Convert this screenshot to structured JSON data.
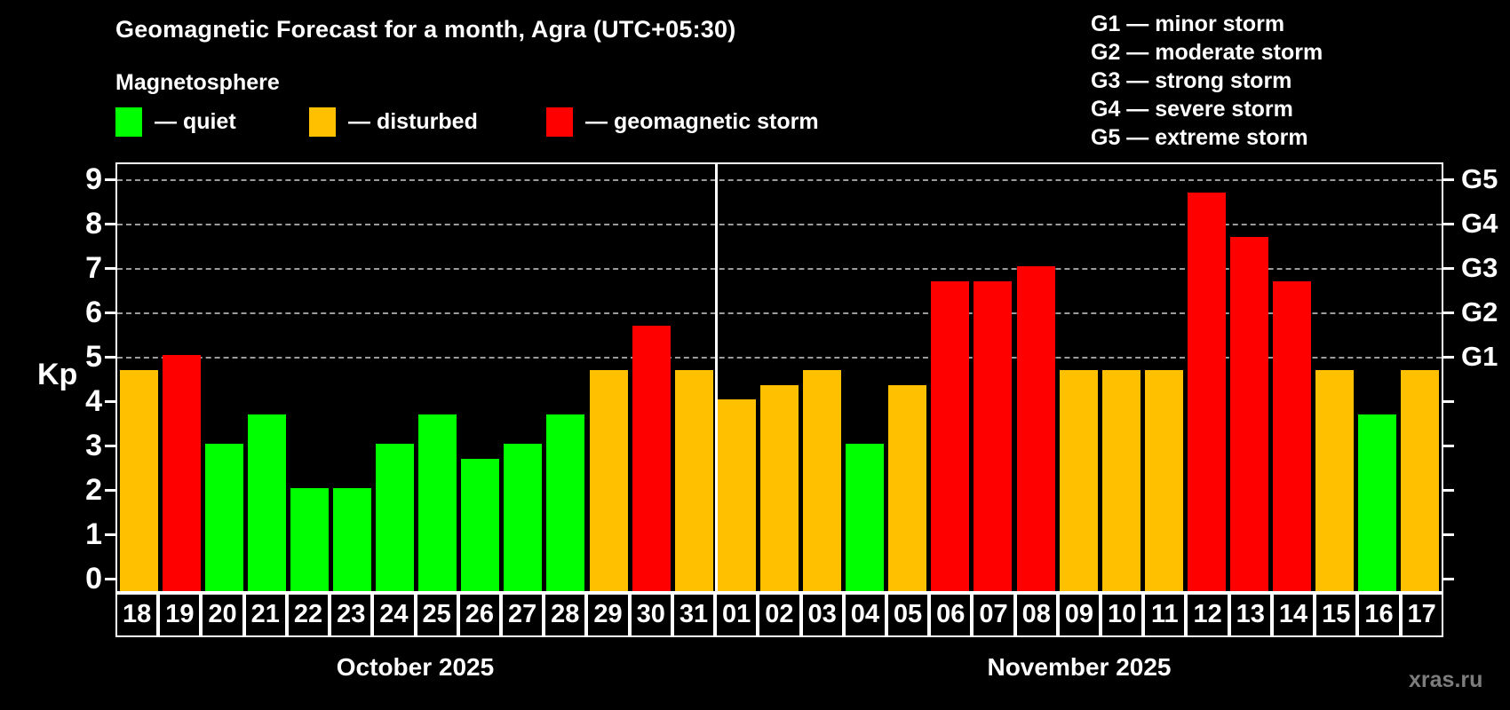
{
  "title": "Geomagnetic Forecast for a month, Agra (UTC+05:30)",
  "subtitle": "Magnetosphere",
  "legend": {
    "items": [
      {
        "key": "quiet",
        "label": "— quiet"
      },
      {
        "key": "disturbed",
        "label": "— disturbed"
      },
      {
        "key": "storm",
        "label": "— geomagnetic storm"
      }
    ]
  },
  "g_legend": [
    "G1 — minor storm",
    "G2 — moderate storm",
    "G3 — strong storm",
    "G4 — severe storm",
    "G5 — extreme storm"
  ],
  "axis": {
    "kp_label": "Kp",
    "left_tick_labels": [
      "0",
      "1",
      "2",
      "3",
      "4",
      "5",
      "6",
      "7",
      "8",
      "9"
    ],
    "right_labels": [
      {
        "kp": 5,
        "label": "G1"
      },
      {
        "kp": 6,
        "label": "G2"
      },
      {
        "kp": 7,
        "label": "G3"
      },
      {
        "kp": 8,
        "label": "G4"
      },
      {
        "kp": 9,
        "label": "G5"
      }
    ]
  },
  "colors": {
    "quiet": "#00ff00",
    "disturbed": "#ffc000",
    "storm": "#ff0000",
    "background": "#000000",
    "axis": "#ffffff",
    "gridline": "#9c9c9c",
    "watermark_text": "#7d7d7d"
  },
  "watermark": "xras.ru",
  "chart_data": {
    "type": "bar",
    "title": "Geomagnetic Forecast for a month, Agra (UTC+05:30)",
    "xlabel": "",
    "ylabel": "Kp",
    "ylim": [
      0,
      9
    ],
    "grid": "dashed horizontal at Kp 5-9 only",
    "gridlines_kp": [
      5,
      6,
      7,
      8,
      9
    ],
    "legend_position": "top",
    "months": [
      {
        "label": "October 2025",
        "days": 14
      },
      {
        "label": "November 2025",
        "days": 17
      }
    ],
    "points": [
      {
        "day": "18",
        "month": "October 2025",
        "kp": 4.67,
        "status": "disturbed"
      },
      {
        "day": "19",
        "month": "October 2025",
        "kp": 5.0,
        "status": "storm"
      },
      {
        "day": "20",
        "month": "October 2025",
        "kp": 3.0,
        "status": "quiet"
      },
      {
        "day": "21",
        "month": "October 2025",
        "kp": 3.67,
        "status": "quiet"
      },
      {
        "day": "22",
        "month": "October 2025",
        "kp": 2.0,
        "status": "quiet"
      },
      {
        "day": "23",
        "month": "October 2025",
        "kp": 2.0,
        "status": "quiet"
      },
      {
        "day": "24",
        "month": "October 2025",
        "kp": 3.0,
        "status": "quiet"
      },
      {
        "day": "25",
        "month": "October 2025",
        "kp": 3.67,
        "status": "quiet"
      },
      {
        "day": "26",
        "month": "October 2025",
        "kp": 2.67,
        "status": "quiet"
      },
      {
        "day": "27",
        "month": "October 2025",
        "kp": 3.0,
        "status": "quiet"
      },
      {
        "day": "28",
        "month": "October 2025",
        "kp": 3.67,
        "status": "quiet"
      },
      {
        "day": "29",
        "month": "October 2025",
        "kp": 4.67,
        "status": "disturbed"
      },
      {
        "day": "30",
        "month": "October 2025",
        "kp": 5.67,
        "status": "storm"
      },
      {
        "day": "31",
        "month": "October 2025",
        "kp": 4.67,
        "status": "disturbed"
      },
      {
        "day": "01",
        "month": "November 2025",
        "kp": 4.0,
        "status": "disturbed"
      },
      {
        "day": "02",
        "month": "November 2025",
        "kp": 4.33,
        "status": "disturbed"
      },
      {
        "day": "03",
        "month": "November 2025",
        "kp": 4.67,
        "status": "disturbed"
      },
      {
        "day": "04",
        "month": "November 2025",
        "kp": 3.0,
        "status": "quiet"
      },
      {
        "day": "05",
        "month": "November 2025",
        "kp": 4.33,
        "status": "disturbed"
      },
      {
        "day": "06",
        "month": "November 2025",
        "kp": 6.67,
        "status": "storm"
      },
      {
        "day": "07",
        "month": "November 2025",
        "kp": 6.67,
        "status": "storm"
      },
      {
        "day": "08",
        "month": "November 2025",
        "kp": 7.0,
        "status": "storm"
      },
      {
        "day": "09",
        "month": "November 2025",
        "kp": 4.67,
        "status": "disturbed"
      },
      {
        "day": "10",
        "month": "November 2025",
        "kp": 4.67,
        "status": "disturbed"
      },
      {
        "day": "11",
        "month": "November 2025",
        "kp": 4.67,
        "status": "disturbed"
      },
      {
        "day": "12",
        "month": "November 2025",
        "kp": 8.67,
        "status": "storm"
      },
      {
        "day": "13",
        "month": "November 2025",
        "kp": 7.67,
        "status": "storm"
      },
      {
        "day": "14",
        "month": "November 2025",
        "kp": 6.67,
        "status": "storm"
      },
      {
        "day": "15",
        "month": "November 2025",
        "kp": 4.67,
        "status": "disturbed"
      },
      {
        "day": "16",
        "month": "November 2025",
        "kp": 3.67,
        "status": "quiet"
      },
      {
        "day": "17",
        "month": "November 2025",
        "kp": 4.67,
        "status": "disturbed"
      }
    ]
  }
}
